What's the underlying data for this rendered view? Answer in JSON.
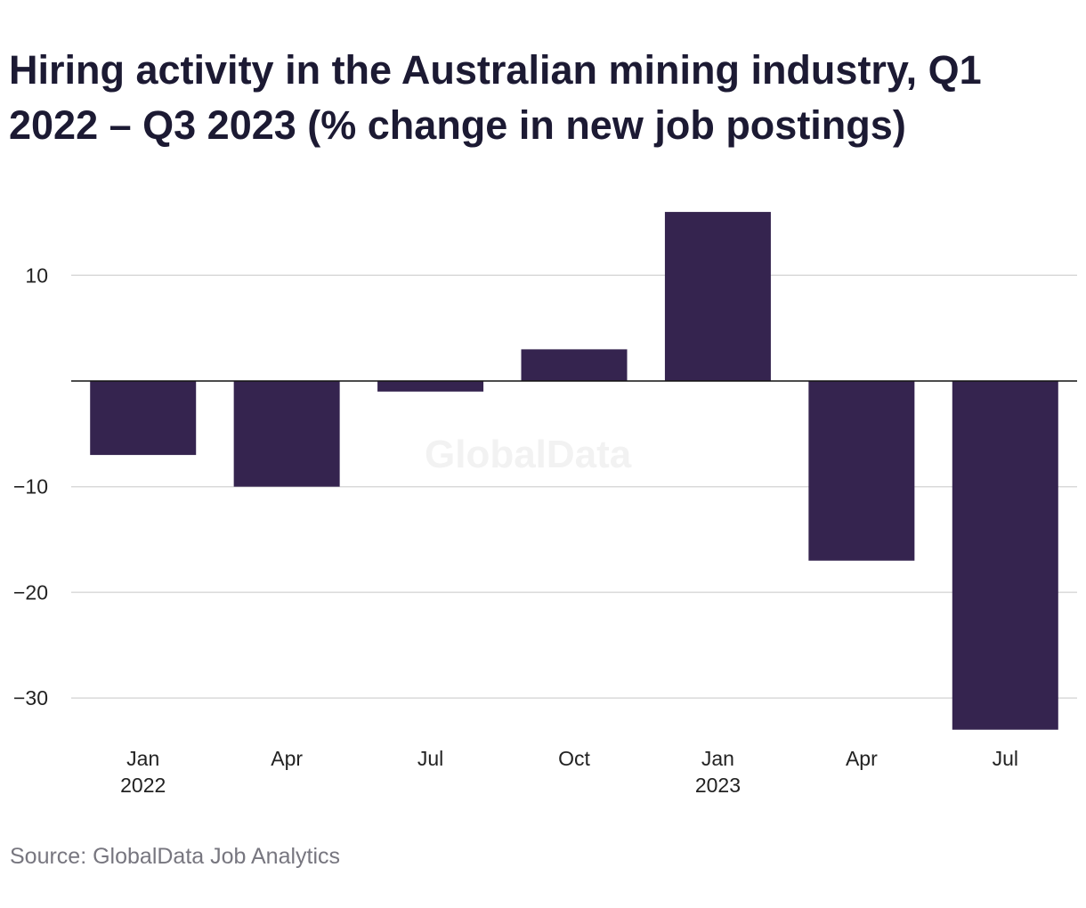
{
  "chart_data": {
    "type": "bar",
    "title": "Hiring activity in the Australian mining industry, Q1 2022 – Q3 2023 (% change in new job postings)",
    "categories": [
      "Jan 2022",
      "Apr 2022",
      "Jul 2022",
      "Oct 2022",
      "Jan 2023",
      "Apr 2023",
      "Jul 2023"
    ],
    "tick_labels": [
      {
        "month": "Jan",
        "year": "2022"
      },
      {
        "month": "Apr",
        "year": ""
      },
      {
        "month": "Jul",
        "year": ""
      },
      {
        "month": "Oct",
        "year": ""
      },
      {
        "month": "Jan",
        "year": "2023"
      },
      {
        "month": "Apr",
        "year": ""
      },
      {
        "month": "Jul",
        "year": ""
      }
    ],
    "values": [
      -7,
      -10,
      -1,
      3,
      16,
      -17,
      -33
    ],
    "yticks": [
      10,
      0,
      -10,
      -20,
      -30
    ],
    "ytick_labels": [
      "10",
      "",
      "−10",
      "−20",
      "−30"
    ],
    "ylim": [
      -33,
      16
    ],
    "xlabel": "",
    "ylabel": "",
    "grid": true,
    "bar_color": "#35244f",
    "source": "Source: GlobalData Job Analytics",
    "watermark": "GlobalData"
  }
}
